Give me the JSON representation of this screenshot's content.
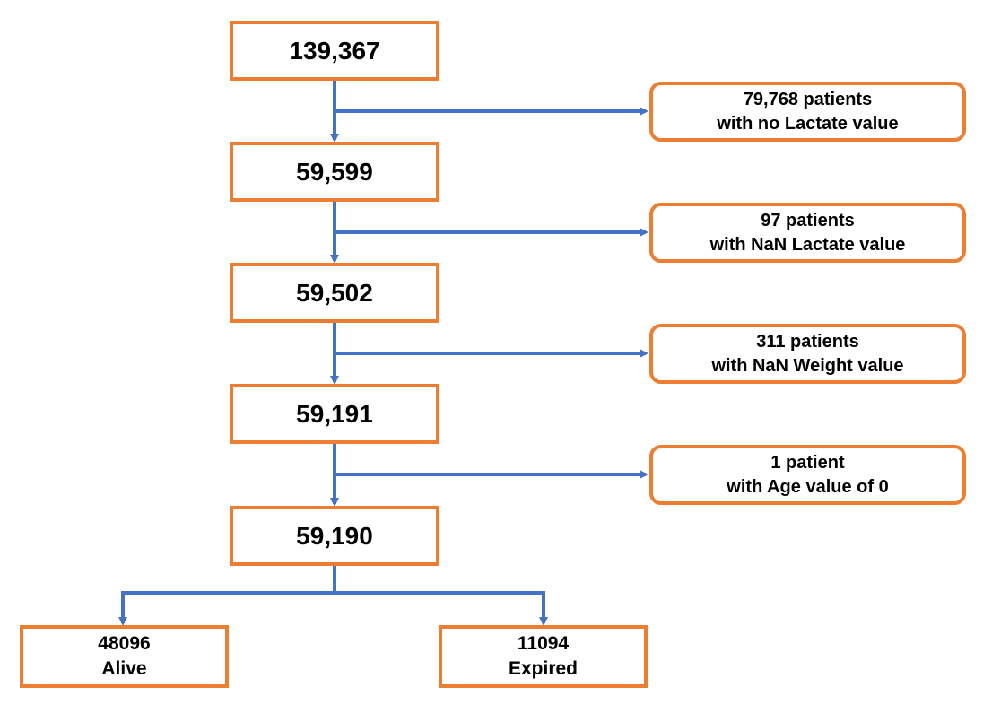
{
  "flow": {
    "steps": [
      {
        "count": "139,367"
      },
      {
        "count": "59,599"
      },
      {
        "count": "59,502"
      },
      {
        "count": "59,191"
      },
      {
        "count": "59,190"
      }
    ],
    "exclusions": [
      {
        "line1": "79,768 patients",
        "line2": "with no Lactate value"
      },
      {
        "line1": "97 patients",
        "line2": "with NaN Lactate value"
      },
      {
        "line1": "311 patients",
        "line2": "with NaN Weight value"
      },
      {
        "line1": "1 patient",
        "line2": "with Age value of 0"
      }
    ],
    "outcomes": [
      {
        "count": "48096",
        "label": "Alive"
      },
      {
        "count": "11094",
        "label": "Expired"
      }
    ]
  },
  "colors": {
    "box_border": "#ED7D31",
    "arrow": "#4472C4",
    "text": "#000000"
  }
}
